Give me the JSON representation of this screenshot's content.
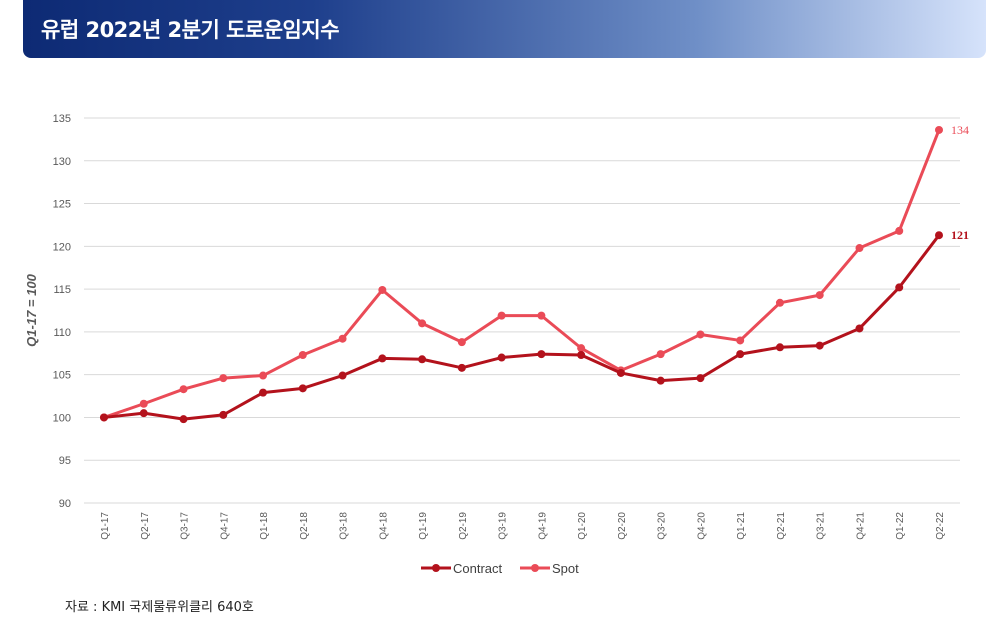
{
  "title": "유럽 2022년 2분기 도로운임지수",
  "source": "자료 : KMI 국제물류위클리 640호",
  "colors": {
    "contract": "#b3121c",
    "spot": "#ea4b57",
    "grid": "#d9d9d9",
    "axis_text": "#595959"
  },
  "chart_data": {
    "type": "line",
    "ylabel": "Q1-17 = 100",
    "ylim": [
      90,
      135
    ],
    "yticks": [
      90,
      95,
      100,
      105,
      110,
      115,
      120,
      125,
      130,
      135
    ],
    "grid": true,
    "legend_position": "bottom",
    "categories": [
      "Q1-17",
      "Q2-17",
      "Q3-17",
      "Q4-17",
      "Q1-18",
      "Q2-18",
      "Q3-18",
      "Q4-18",
      "Q1-19",
      "Q2-19",
      "Q3-19",
      "Q4-19",
      "Q1-20",
      "Q2-20",
      "Q3-20",
      "Q4-20",
      "Q1-21",
      "Q2-21",
      "Q3-21",
      "Q4-21",
      "Q1-22",
      "Q2-22"
    ],
    "series": [
      {
        "name": "Contract",
        "values": [
          100,
          100.5,
          99.8,
          100.3,
          102.9,
          103.4,
          104.9,
          106.9,
          106.8,
          105.8,
          107,
          107.4,
          107.3,
          105.2,
          104.3,
          104.6,
          107.4,
          108.2,
          108.4,
          110.4,
          115.2,
          121.3
        ],
        "end_label": "121"
      },
      {
        "name": "Spot",
        "values": [
          100,
          101.6,
          103.3,
          104.6,
          104.9,
          107.3,
          109.2,
          114.9,
          111,
          108.8,
          111.9,
          111.9,
          108.1,
          105.5,
          107.4,
          109.7,
          109,
          113.4,
          114.3,
          119.8,
          121.8,
          133.6
        ],
        "end_label": "134"
      }
    ]
  }
}
